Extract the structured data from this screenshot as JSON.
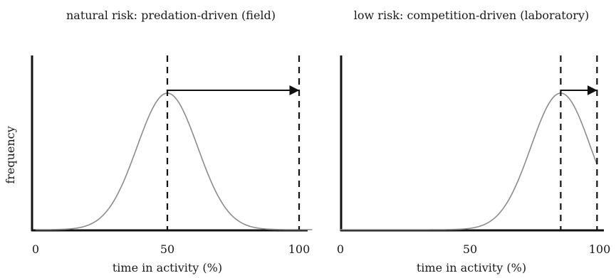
{
  "chart_data": [
    {
      "type": "line",
      "title": "natural risk: predation-driven (field)",
      "xlabel": "time in activity (%)",
      "ylabel": "frequency",
      "x_ticks": [
        "0",
        "50",
        "100"
      ],
      "xlim": [
        0,
        105
      ],
      "series": [
        {
          "name": "",
          "mean": 50,
          "sd": 11.5,
          "x_start": 0,
          "x_end": 105
        }
      ],
      "reference_lines": [
        50,
        100
      ],
      "arrow": {
        "from": 50,
        "to": 100
      },
      "grid": false,
      "legend": "none"
    },
    {
      "type": "line",
      "title": "low risk: competition-driven (laboratory)",
      "xlabel": "time in activity (%)",
      "ylabel": "",
      "x_ticks": [
        "0",
        "50",
        "100"
      ],
      "xlim": [
        0,
        105
      ],
      "series": [
        {
          "name": "",
          "mean": 85,
          "sd": 11.5,
          "x_start": 0,
          "x_end": 99
        }
      ],
      "reference_lines": [
        85,
        99
      ],
      "arrow": {
        "from": 85,
        "to": 99
      },
      "grid": false,
      "legend": "none"
    }
  ]
}
